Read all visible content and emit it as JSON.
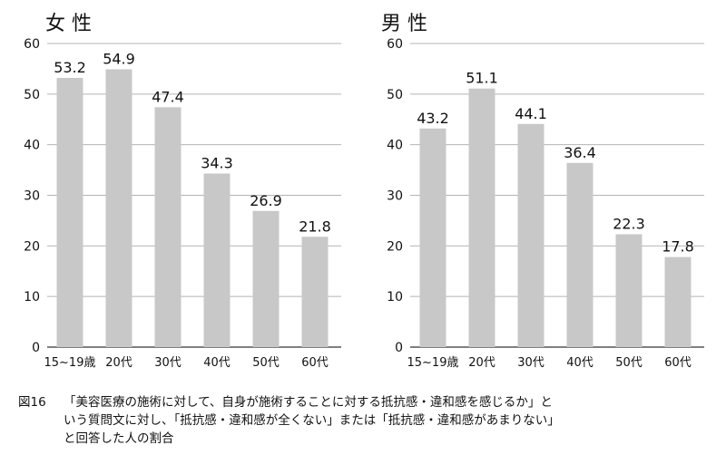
{
  "chart_data": [
    {
      "type": "bar",
      "title": "女 性",
      "categories": [
        "15~19歳",
        "20代",
        "30代",
        "40代",
        "50代",
        "60代"
      ],
      "values": [
        53.2,
        54.9,
        47.4,
        34.3,
        26.9,
        21.8
      ],
      "ylim": [
        0,
        60
      ],
      "yticks": [
        0,
        10,
        20,
        30,
        40,
        50,
        60
      ],
      "grid": true,
      "bar_color": "#c8c8c8",
      "grid_color": "#b4b4b4"
    },
    {
      "type": "bar",
      "title": "男 性",
      "categories": [
        "15~19歳",
        "20代",
        "30代",
        "40代",
        "50代",
        "60代"
      ],
      "values": [
        43.2,
        51.1,
        44.1,
        36.4,
        22.3,
        17.8
      ],
      "ylim": [
        0,
        60
      ],
      "yticks": [
        0,
        10,
        20,
        30,
        40,
        50,
        60
      ],
      "grid": true,
      "bar_color": "#c8c8c8",
      "grid_color": "#b4b4b4"
    }
  ],
  "caption": {
    "number": "図16",
    "line1": "「美容医療の施術に対して、自身が施術することに対する抵抗感・違和感を感じるか」と",
    "line2": "いう質問文に対し、「抵抗感・違和感が全くない」または「抵抗感・違和感があまりない」",
    "line3": "と回答した人の割合"
  }
}
